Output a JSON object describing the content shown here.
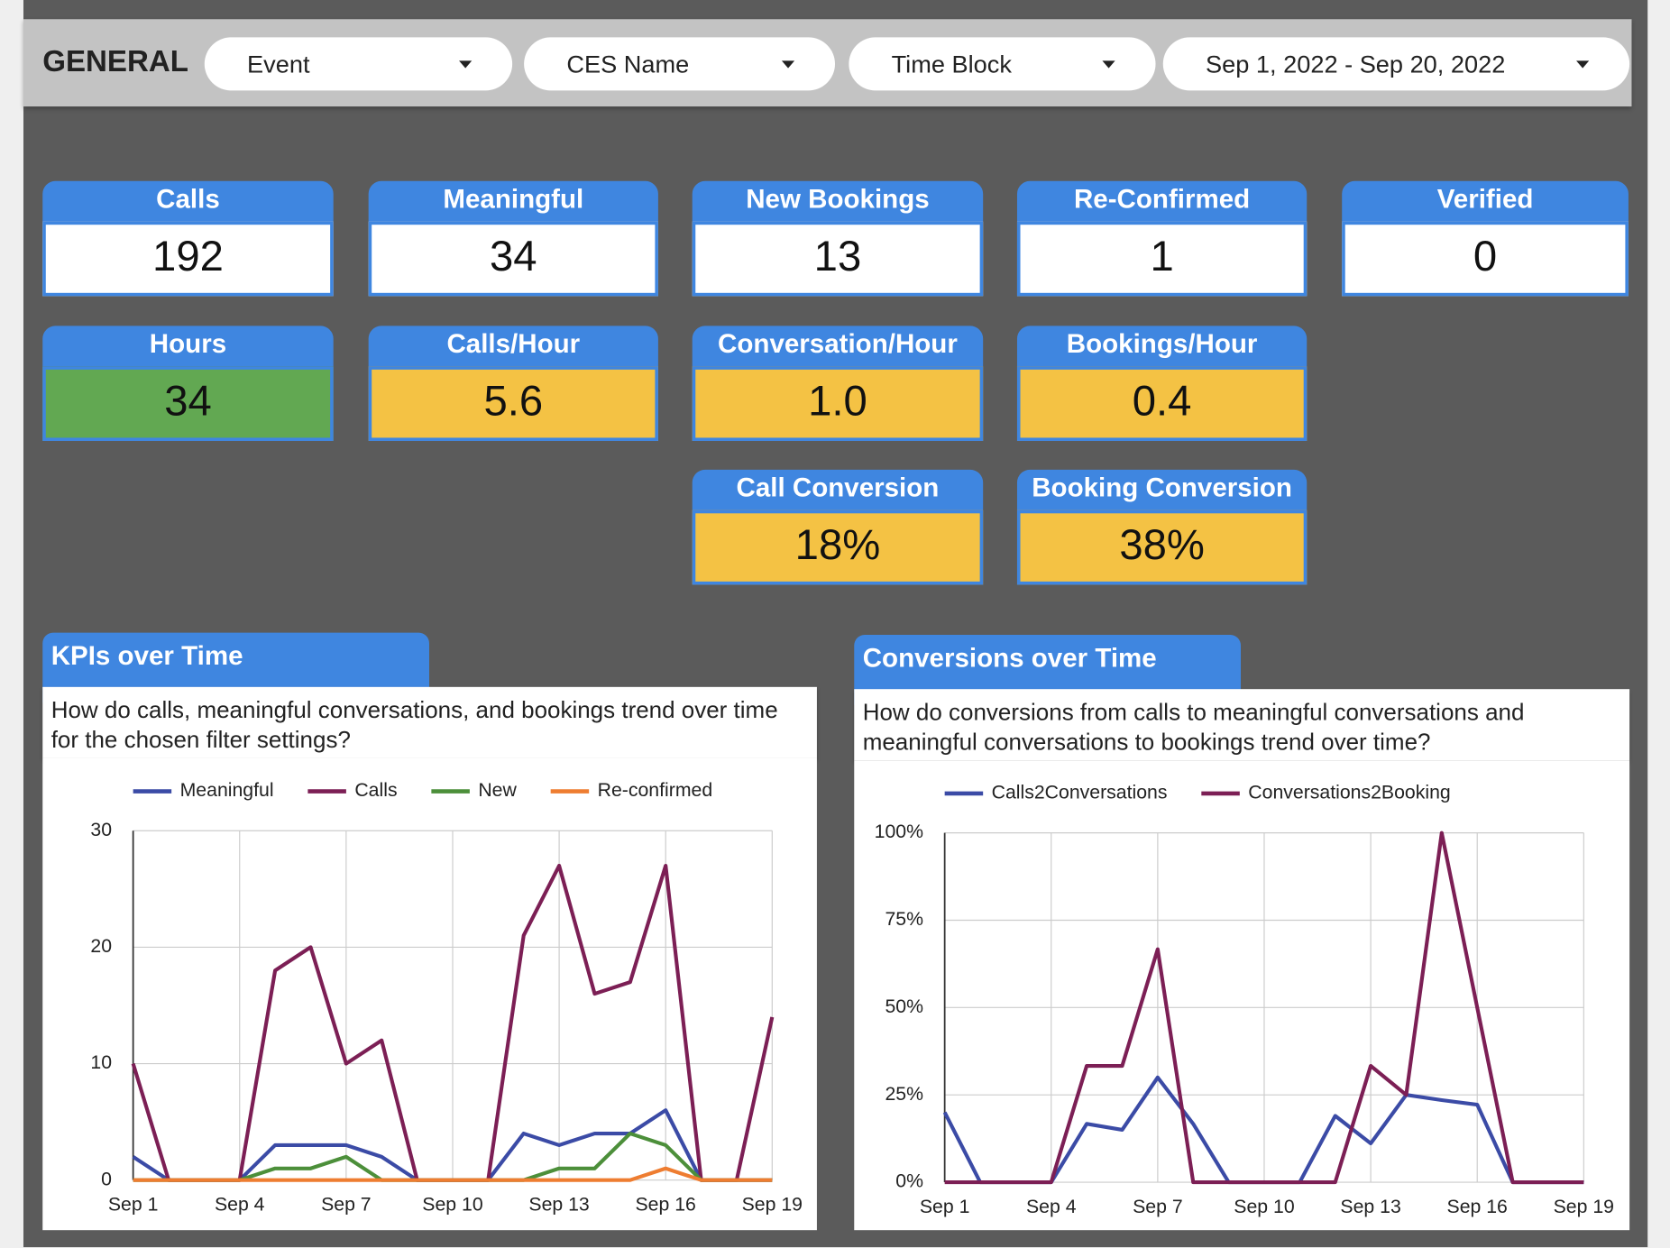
{
  "header": {
    "title": "GENERAL",
    "filters": [
      "Event",
      "CES Name",
      "Time Block",
      "Sep 1, 2022 - Sep 20, 2022"
    ]
  },
  "kpis": [
    {
      "label": "Calls",
      "value": "192",
      "color": "#ffffff"
    },
    {
      "label": "Meaningful",
      "value": "34",
      "color": "#ffffff"
    },
    {
      "label": "New Bookings",
      "value": "13",
      "color": "#ffffff"
    },
    {
      "label": "Re-Confirmed",
      "value": "1",
      "color": "#ffffff"
    },
    {
      "label": "Verified",
      "value": "0",
      "color": "#ffffff"
    },
    {
      "label": "Hours",
      "value": "34",
      "color": "#62a852"
    },
    {
      "label": "Calls/Hour",
      "value": "5.6",
      "color": "#f4c244"
    },
    {
      "label": "Conversation/Hour",
      "value": "1.0",
      "color": "#f4c244"
    },
    {
      "label": "Bookings/Hour",
      "value": "0.4",
      "color": "#f4c244"
    },
    {
      "label": "Call Conversion",
      "value": "18%",
      "color": "#f4c244"
    },
    {
      "label": "Booking Conversion",
      "value": "38%",
      "color": "#f4c244"
    }
  ],
  "chart_data": [
    {
      "type": "line",
      "title": "KPIs over Time",
      "subtitle": "How do calls, meaningful conversations, and bookings trend over time for the chosen filter settings?",
      "categories": [
        "Sep 1",
        null,
        null,
        "Sep 4",
        null,
        null,
        "Sep 7",
        null,
        null,
        "Sep 10",
        null,
        null,
        "Sep 13",
        null,
        null,
        "Sep 16",
        null,
        null,
        "Sep 19"
      ],
      "ylim": [
        0,
        30
      ],
      "yticks": [
        0,
        10,
        20,
        30
      ],
      "grid": true,
      "series": [
        {
          "name": "Meaningful",
          "color": "#3b4ba6",
          "values": [
            2,
            0,
            0,
            0,
            3,
            3,
            3,
            2,
            0,
            0,
            0,
            4,
            3,
            4,
            4,
            6,
            0,
            0,
            0
          ]
        },
        {
          "name": "Calls",
          "color": "#7c1f55",
          "values": [
            10,
            0,
            0,
            0,
            18,
            20,
            10,
            12,
            0,
            0,
            0,
            21,
            27,
            16,
            17,
            27,
            0,
            0,
            14
          ]
        },
        {
          "name": "New",
          "color": "#4c8f3a",
          "values": [
            0,
            0,
            0,
            0,
            1,
            1,
            2,
            0,
            0,
            0,
            0,
            0,
            1,
            1,
            4,
            3,
            0,
            0,
            0
          ]
        },
        {
          "name": "Re-confirmed",
          "color": "#ee7d31",
          "values": [
            0,
            0,
            0,
            0,
            0,
            0,
            0,
            0,
            0,
            0,
            0,
            0,
            0,
            0,
            0,
            1,
            0,
            0,
            0
          ]
        }
      ]
    },
    {
      "type": "line",
      "title": "Conversions over Time",
      "subtitle": "How do conversions from calls to meaningful conversations and meaningful conversations to bookings trend over time?",
      "categories": [
        "Sep 1",
        null,
        null,
        "Sep 4",
        null,
        null,
        "Sep 7",
        null,
        null,
        "Sep 10",
        null,
        null,
        "Sep 13",
        null,
        null,
        "Sep 16",
        null,
        null,
        "Sep 19"
      ],
      "ylim": [
        0,
        100
      ],
      "yticks": [
        {
          "value": 0,
          "label": "0%"
        },
        {
          "value": 25,
          "label": "25%"
        },
        {
          "value": 50,
          "label": "50%"
        },
        {
          "value": 75,
          "label": "75%"
        },
        {
          "value": 100,
          "label": "100%"
        }
      ],
      "grid": true,
      "series": [
        {
          "name": "Calls2Conversations",
          "color": "#3b4ba6",
          "values": [
            20,
            0,
            0,
            0,
            16.7,
            15,
            30,
            16.7,
            0,
            0,
            0,
            19,
            11.1,
            25,
            23.5,
            22.2,
            0,
            0,
            0
          ]
        },
        {
          "name": "Conversations2Booking",
          "color": "#7c1f55",
          "values": [
            0,
            0,
            0,
            0,
            33.3,
            33.3,
            66.7,
            0,
            0,
            0,
            0,
            0,
            33.3,
            25,
            100,
            50,
            0,
            0,
            0
          ]
        }
      ]
    }
  ]
}
